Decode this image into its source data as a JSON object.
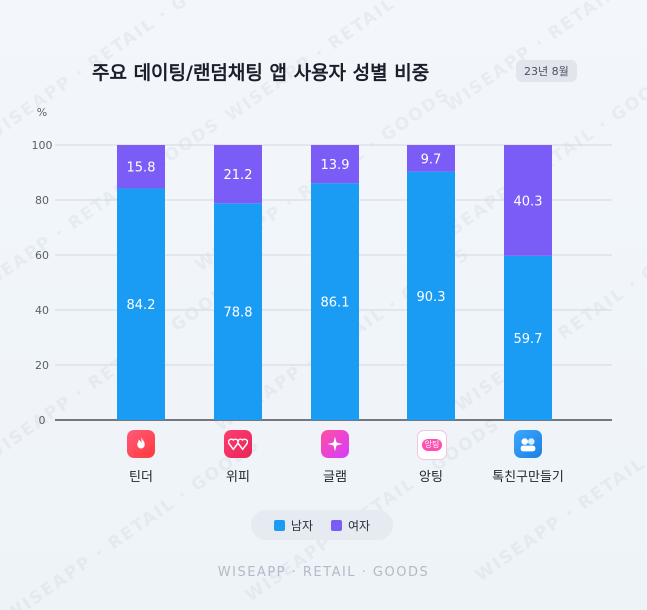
{
  "header": {
    "title": "주요 데이팅/랜덤채팅 앱 사용자 성별 비중",
    "date_badge": "23년 8월"
  },
  "footer": {
    "text": "WISEAPP · RETAIL · GOODS"
  },
  "watermark": {
    "text": "WISEAPP · RETAIL · GOODS"
  },
  "colors": {
    "male": "#1a9cf5",
    "female": "#7c5cf6"
  },
  "apps": [
    {
      "name": "틴더",
      "icon": "tinder-flame-icon"
    },
    {
      "name": "위피",
      "icon": "wippy-hearts-icon"
    },
    {
      "name": "글램",
      "icon": "glam-sparkle-icon"
    },
    {
      "name": "앙팅",
      "icon": "angting-bubble-icon",
      "icon_text": "앙팅"
    },
    {
      "name": "톡친구만들기",
      "icon": "talk-friends-icon"
    }
  ],
  "chart_data": {
    "type": "bar",
    "stacked": true,
    "title": "주요 데이팅/랜덤채팅 앱 사용자 성별 비중",
    "categories": [
      "틴더",
      "위피",
      "글램",
      "앙팅",
      "톡친구만들기"
    ],
    "series": [
      {
        "name": "남자",
        "values": [
          84.2,
          78.8,
          86.1,
          90.3,
          59.7
        ],
        "color": "#1a9cf5"
      },
      {
        "name": "여자",
        "values": [
          15.8,
          21.2,
          13.9,
          9.7,
          40.3
        ],
        "color": "#7c5cf6"
      }
    ],
    "ylabel": "%",
    "ylim": [
      0,
      100
    ],
    "yticks": [
      0,
      20,
      40,
      60,
      80,
      100
    ],
    "grid": true,
    "legend_position": "bottom"
  }
}
